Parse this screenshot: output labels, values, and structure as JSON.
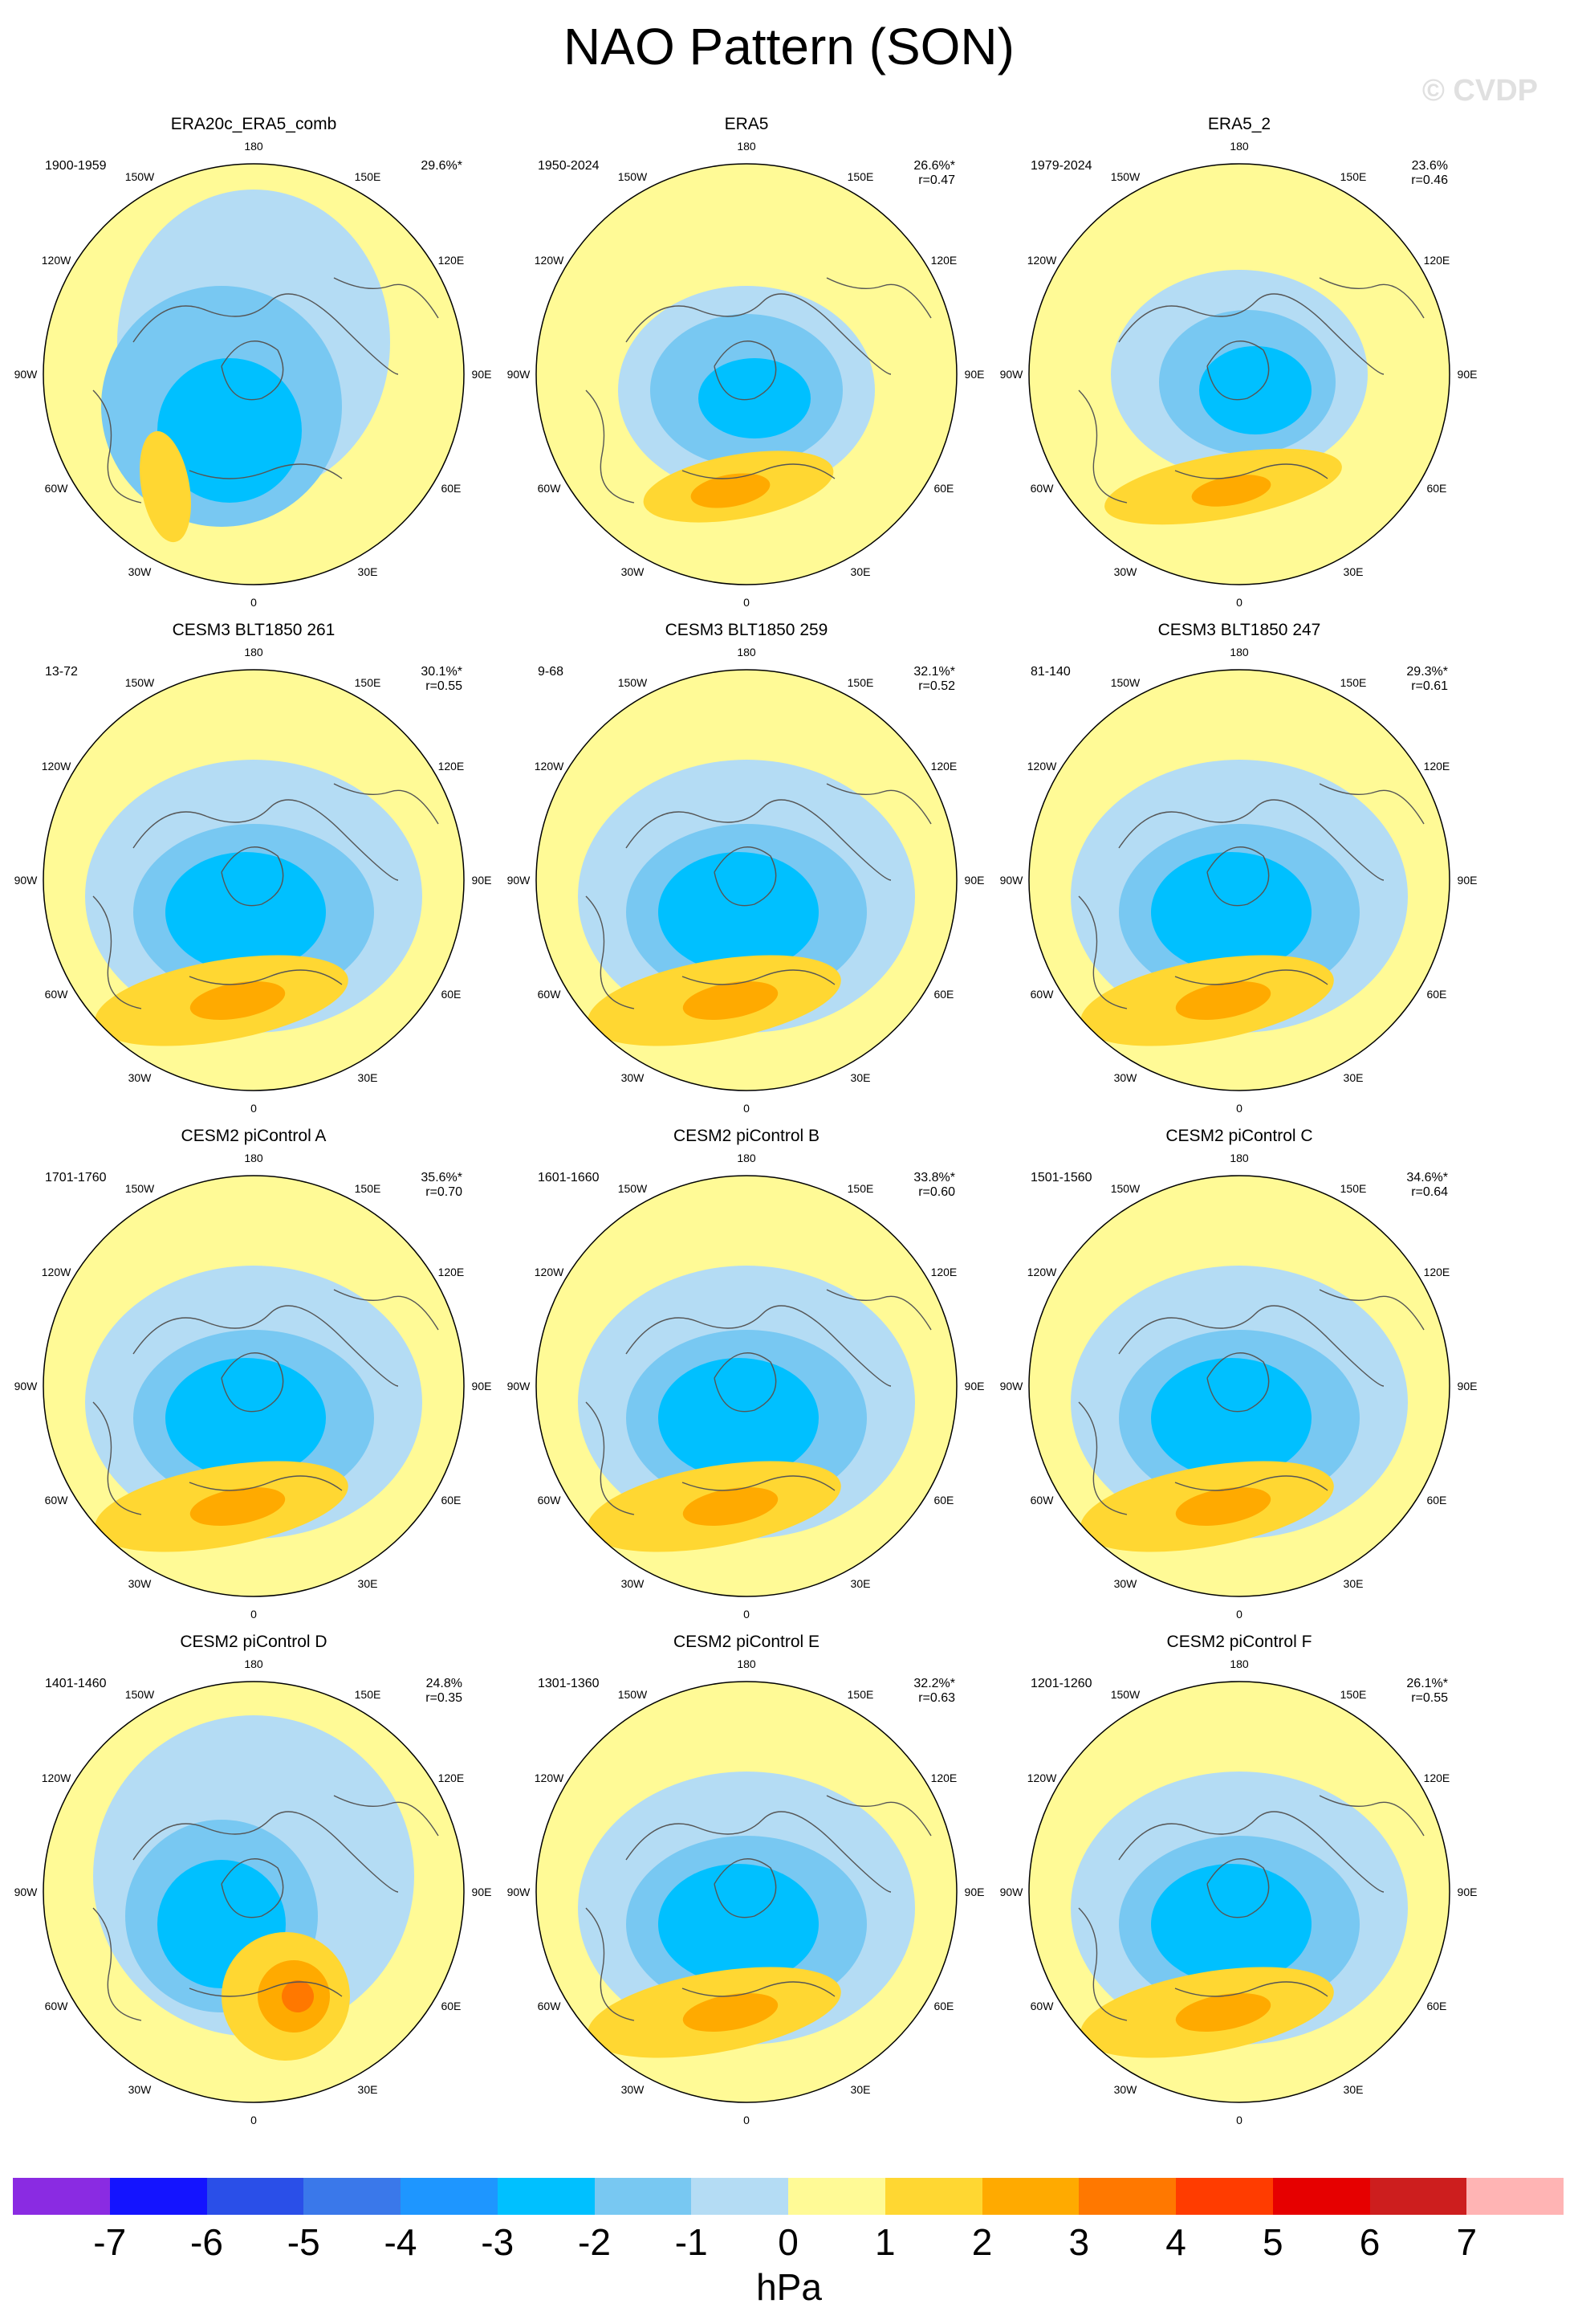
{
  "title": "NAO Pattern (SON)",
  "watermark": "© CVDP",
  "lon_labels": [
    "180",
    "150E",
    "120E",
    "90E",
    "60E",
    "30E",
    "0",
    "30W",
    "60W",
    "90W",
    "120W",
    "150W"
  ],
  "panels": [
    {
      "name": "ERA20c_ERA5_comb",
      "period": "1900-1959",
      "pct": "29.6%*",
      "r": "",
      "variant": "obs1"
    },
    {
      "name": "ERA5",
      "period": "1950-2024",
      "pct": "26.6%*",
      "r": "r=0.47",
      "variant": "obs2"
    },
    {
      "name": "ERA5_2",
      "period": "1979-2024",
      "pct": "23.6%",
      "r": "r=0.46",
      "variant": "obs3"
    },
    {
      "name": "CESM3 BLT1850 261",
      "period": "13-72",
      "pct": "30.1%*",
      "r": "r=0.55",
      "variant": "model"
    },
    {
      "name": "CESM3 BLT1850 259",
      "period": "9-68",
      "pct": "32.1%*",
      "r": "r=0.52",
      "variant": "model"
    },
    {
      "name": "CESM3 BLT1850 247",
      "period": "81-140",
      "pct": "29.3%*",
      "r": "r=0.61",
      "variant": "model"
    },
    {
      "name": "CESM2 piControl A",
      "period": "1701-1760",
      "pct": "35.6%*",
      "r": "r=0.70",
      "variant": "model"
    },
    {
      "name": "CESM2 piControl B",
      "period": "1601-1660",
      "pct": "33.8%*",
      "r": "r=0.60",
      "variant": "model"
    },
    {
      "name": "CESM2 piControl C",
      "period": "1501-1560",
      "pct": "34.6%*",
      "r": "r=0.64",
      "variant": "model"
    },
    {
      "name": "CESM2 piControl D",
      "period": "1401-1460",
      "pct": "24.8%",
      "r": "r=0.35",
      "variant": "modelD"
    },
    {
      "name": "CESM2 piControl E",
      "period": "1301-1360",
      "pct": "32.2%*",
      "r": "r=0.63",
      "variant": "model"
    },
    {
      "name": "CESM2 piControl F",
      "period": "1201-1260",
      "pct": "26.1%*",
      "r": "r=0.55",
      "variant": "model"
    }
  ],
  "colorbar": {
    "colors": [
      "#8a2be2",
      "#1414ff",
      "#2a4fe8",
      "#3a78ea",
      "#1e96ff",
      "#00c0ff",
      "#78c8f2",
      "#b4dcf4",
      "#fffa96",
      "#ffd732",
      "#ffaa00",
      "#ff7800",
      "#ff3c00",
      "#e60000",
      "#cd1e1e",
      "#ffb4b4"
    ],
    "ticks": [
      "-7",
      "-6",
      "-5",
      "-4",
      "-3",
      "-2",
      "-1",
      "0",
      "1",
      "2",
      "3",
      "4",
      "5",
      "6",
      "7"
    ],
    "units": "hPa"
  }
}
